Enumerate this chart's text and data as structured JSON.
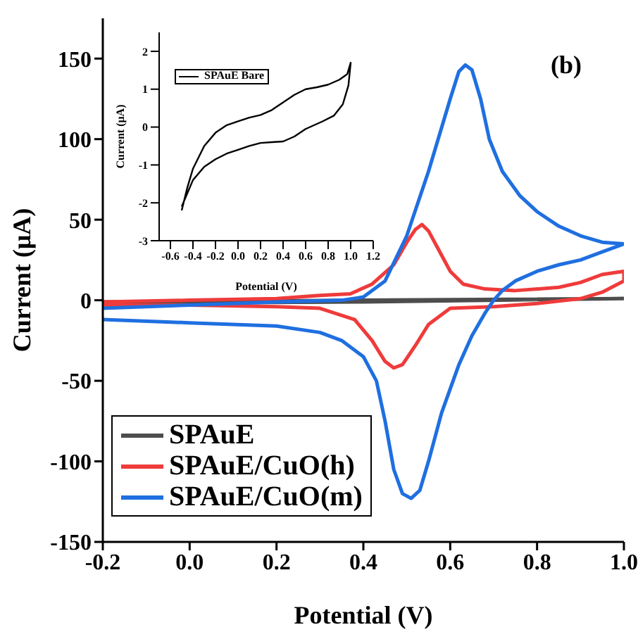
{
  "chart_data": [
    {
      "type": "line",
      "xlabel": "Potential (V)",
      "ylabel": "Current (μA)",
      "annotations": [
        "(b)"
      ],
      "xlim": [
        -0.2,
        1.0
      ],
      "xticks": [
        {
          "value": -0.2,
          "label": "-0.2"
        },
        {
          "value": 0,
          "label": "0.0"
        },
        {
          "value": 0.2,
          "label": "0.2"
        },
        {
          "value": 0.4,
          "label": "0.4"
        },
        {
          "value": 0.6,
          "label": "0.6"
        },
        {
          "value": 0.8,
          "label": "0.8"
        },
        {
          "value": 1.0,
          "label": "1.0"
        }
      ],
      "ylim": [
        -150,
        175
      ],
      "yticks": [
        -150,
        -100,
        -50,
        0,
        50,
        100,
        150
      ],
      "grid": false,
      "legend": "bottom left",
      "marker": "none",
      "line_style": "solid",
      "series": [
        {
          "name": "SPAuE",
          "color": "#4d4d4d",
          "x": [
            -0.2,
            0.4,
            1.0,
            0.4,
            -0.2
          ],
          "values": [
            -1,
            0,
            1,
            -1,
            -2
          ]
        },
        {
          "name": "SPAuE/CuO(h)",
          "color": "#ef3b3b",
          "x": [
            -0.2,
            0,
            0.2,
            0.3,
            0.37,
            0.42,
            0.47,
            0.5,
            0.52,
            0.535,
            0.55,
            0.58,
            0.6,
            0.63,
            0.68,
            0.75,
            0.85,
            0.9,
            0.95,
            1.0,
            1.0,
            0.95,
            0.9,
            0.8,
            0.7,
            0.6,
            0.55,
            0.52,
            0.49,
            0.47,
            0.45,
            0.42,
            0.38,
            0.3,
            0.2,
            0,
            -0.2
          ],
          "values": [
            -1,
            0,
            1,
            3,
            4,
            10,
            22,
            36,
            44,
            47,
            43,
            28,
            18,
            10,
            7,
            6,
            8,
            11,
            16,
            18,
            12,
            5,
            1,
            -2,
            -4,
            -5,
            -15,
            -28,
            -40,
            -42,
            -38,
            -25,
            -12,
            -5,
            -4,
            -3,
            -3
          ]
        },
        {
          "name": "SPAuE/CuO(m)",
          "color": "#1f6fe0",
          "x": [
            -0.2,
            0,
            0.2,
            0.35,
            0.4,
            0.45,
            0.5,
            0.55,
            0.6,
            0.62,
            0.635,
            0.65,
            0.67,
            0.69,
            0.72,
            0.76,
            0.8,
            0.85,
            0.9,
            0.95,
            1.0,
            0.95,
            0.9,
            0.85,
            0.8,
            0.75,
            0.72,
            0.7,
            0.68,
            0.65,
            0.62,
            0.58,
            0.55,
            0.53,
            0.51,
            0.49,
            0.47,
            0.45,
            0.43,
            0.4,
            0.35,
            0.3,
            0.2,
            0,
            -0.2
          ],
          "values": [
            -5,
            -3,
            -1,
            0,
            2,
            12,
            40,
            80,
            125,
            142,
            146,
            143,
            125,
            100,
            80,
            65,
            55,
            46,
            40,
            36,
            35,
            30,
            25,
            22,
            18,
            12,
            6,
            0,
            -8,
            -22,
            -40,
            -70,
            -100,
            -118,
            -123,
            -120,
            -105,
            -75,
            -50,
            -35,
            -25,
            -20,
            -16,
            -14,
            -12
          ]
        }
      ]
    },
    {
      "type": "line",
      "xlabel": "Potential (V)",
      "ylabel": "Current (μA)",
      "xlim": [
        -0.7,
        1.2
      ],
      "xticks": [
        -0.6,
        -0.4,
        -0.2,
        {
          "value": 0,
          "label": "0.0"
        },
        0.2,
        0.4,
        0.6,
        0.8,
        {
          "value": 1.0,
          "label": "1.0"
        },
        1.2
      ],
      "ylim": [
        -3,
        2.5
      ],
      "yticks": [
        -3,
        -2,
        -1,
        0,
        1,
        2
      ],
      "grid": false,
      "legend": "top left",
      "marker": "none",
      "line_style": "solid",
      "series": [
        {
          "name": "SPAuE Bare",
          "color": "#000000",
          "x": [
            -0.5,
            -0.45,
            -0.4,
            -0.3,
            -0.2,
            -0.1,
            0,
            0.1,
            0.2,
            0.3,
            0.4,
            0.5,
            0.6,
            0.7,
            0.8,
            0.9,
            0.97,
            1.0,
            0.98,
            0.93,
            0.85,
            0.75,
            0.6,
            0.5,
            0.4,
            0.3,
            0.2,
            0.1,
            0,
            -0.1,
            -0.2,
            -0.3,
            -0.4,
            -0.5
          ],
          "values": [
            -2.2,
            -1.6,
            -1.1,
            -0.5,
            -0.15,
            0.05,
            0.15,
            0.25,
            0.32,
            0.45,
            0.65,
            0.85,
            1.0,
            1.05,
            1.12,
            1.25,
            1.4,
            1.7,
            1.1,
            0.6,
            0.3,
            0.15,
            -0.05,
            -0.25,
            -0.38,
            -0.4,
            -0.42,
            -0.5,
            -0.6,
            -0.7,
            -0.85,
            -1.05,
            -1.4,
            -2.1
          ]
        }
      ]
    }
  ]
}
